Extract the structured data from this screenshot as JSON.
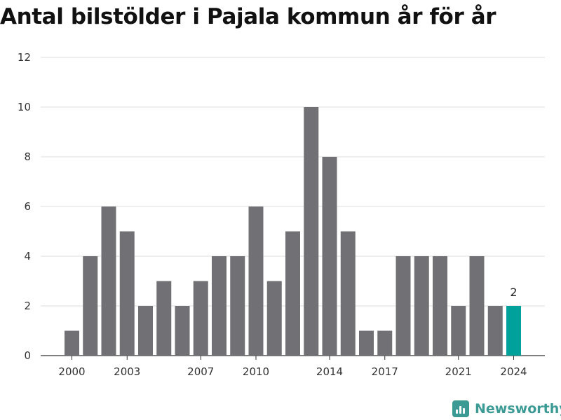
{
  "title": "Antal bilstölder i Pajala kommun år för år",
  "brand": {
    "name": "Newsworthy",
    "icon": "newsworthy-logo-icon",
    "color": "#3b9a94"
  },
  "chart_data": {
    "type": "bar",
    "title": "Antal bilstölder i Pajala kommun år för år",
    "xlabel": "",
    "ylabel": "",
    "categories": [
      "2000",
      "2001",
      "2002",
      "2003",
      "2004",
      "2005",
      "2006",
      "2007",
      "2008",
      "2009",
      "2010",
      "2011",
      "2012",
      "2013",
      "2014",
      "2015",
      "2016",
      "2017",
      "2018",
      "2019",
      "2020",
      "2021",
      "2022",
      "2023",
      "2024"
    ],
    "values": [
      1,
      4,
      6,
      5,
      2,
      3,
      2,
      3,
      4,
      4,
      6,
      3,
      5,
      10,
      8,
      5,
      1,
      1,
      4,
      4,
      4,
      2,
      4,
      2,
      2
    ],
    "x_tick_labels": [
      "2000",
      "2003",
      "2007",
      "2010",
      "2014",
      "2017",
      "2021",
      "2024"
    ],
    "y_ticks": [
      0,
      2,
      4,
      6,
      8,
      10,
      12
    ],
    "ylim": [
      0,
      12
    ],
    "grid": true,
    "legend": "none",
    "highlight": {
      "category": "2024",
      "label": "2",
      "color": "#00a19a"
    },
    "bar_color": "#717074"
  }
}
